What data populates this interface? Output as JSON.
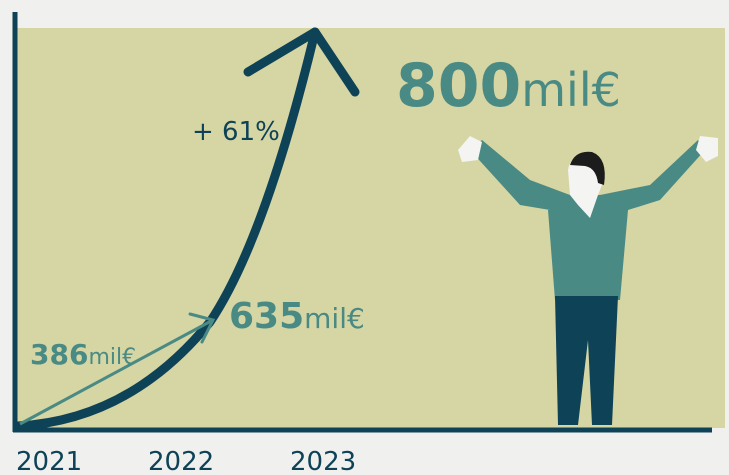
{
  "labels": {
    "start": {
      "amount": "386",
      "unit": "mil€"
    },
    "mid": {
      "amount": "635",
      "unit": "mil€"
    },
    "end": {
      "amount": "800",
      "unit": "mil€"
    },
    "growth": "+ 61%"
  },
  "x_axis": {
    "years": [
      "2021",
      "2022",
      "2023"
    ]
  }
}
